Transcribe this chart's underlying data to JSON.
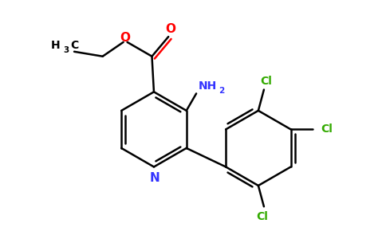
{
  "background_color": "#ffffff",
  "bond_color": "#000000",
  "bond_width": 1.8,
  "N_color": "#3333ff",
  "O_color": "#ff0000",
  "Cl_color": "#33aa00",
  "NH2_color": "#3333ff",
  "figsize": [
    4.84,
    3.0
  ],
  "dpi": 100,
  "xlim": [
    0,
    9.68
  ],
  "ylim": [
    0,
    6.0
  ]
}
